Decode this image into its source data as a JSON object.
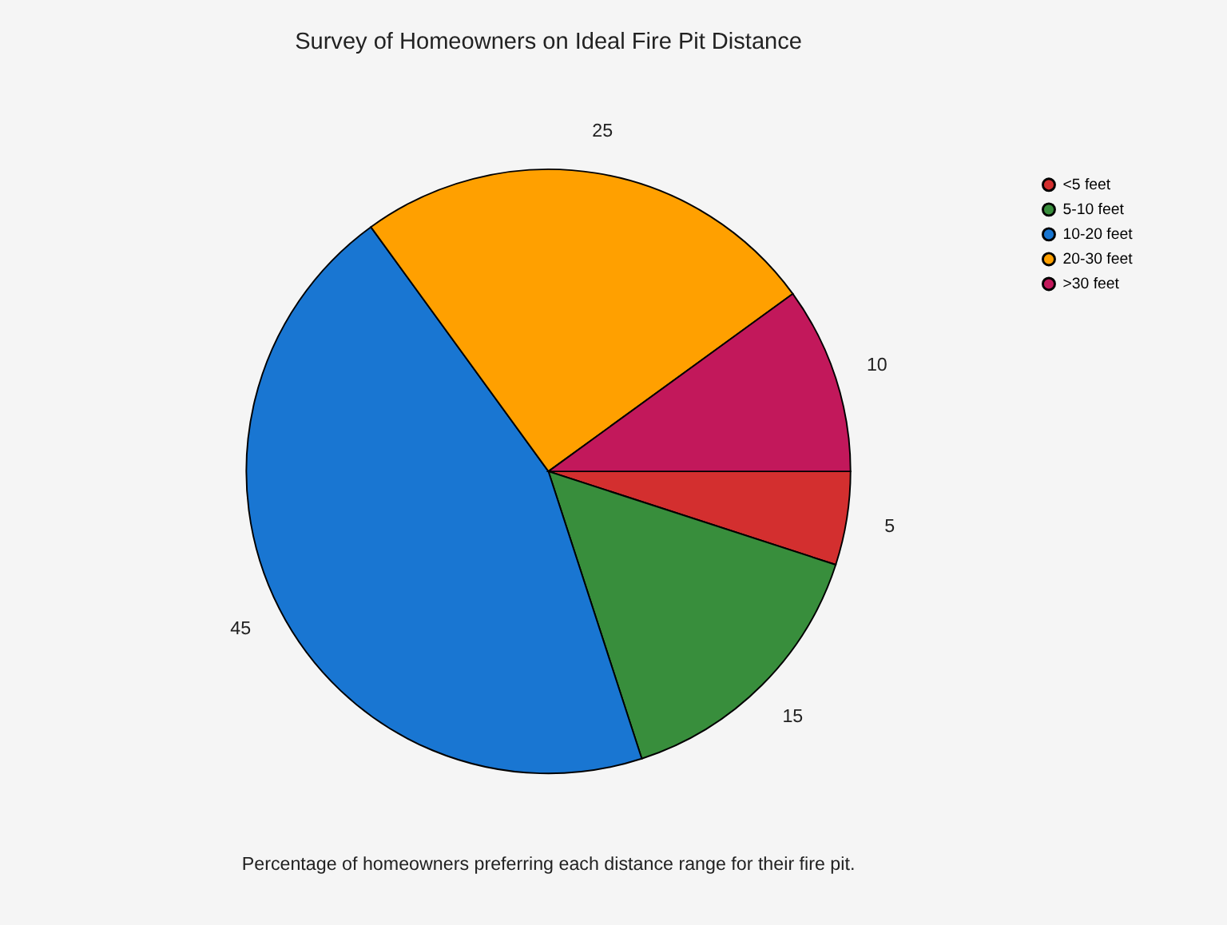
{
  "chart_data": {
    "type": "pie",
    "title": "Survey of Homeowners on Ideal Fire Pit Distance",
    "categories": [
      "<5 feet",
      "5-10 feet",
      "10-20 feet",
      "20-30 feet",
      ">30 feet"
    ],
    "values": [
      5,
      15,
      45,
      25,
      10
    ],
    "colors": [
      "#d32f2f",
      "#388e3c",
      "#1976d2",
      "#ffa000",
      "#c2185b"
    ],
    "data_labels": true,
    "legend": "top right",
    "annotations": [
      "Percentage of homeowners preferring each distance range for their fire pit."
    ]
  }
}
